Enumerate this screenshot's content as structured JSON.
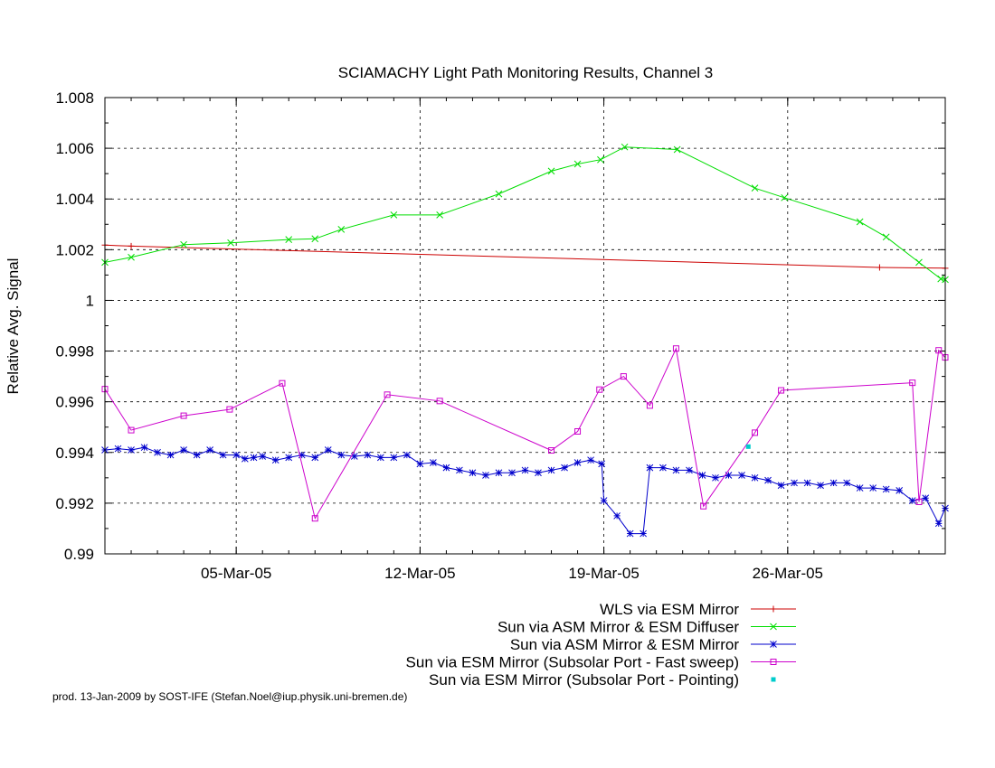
{
  "footer_text": "prod. 13-Jan-2009 by SOST-IFE (Stefan.Noel@iup.physik.uni-bremen.de)",
  "chart_data": {
    "type": "line",
    "title": "SCIAMACHY Light Path Monitoring Results, Channel 3",
    "xlabel": "",
    "ylabel": "Relative Avg. Signal",
    "xlim": [
      "2005-02-28 00:00",
      "2005-04-01 00:00"
    ],
    "ylim": [
      0.99,
      1.008
    ],
    "yticks": [
      0.99,
      0.992,
      0.994,
      0.996,
      0.998,
      1,
      1.002,
      1.004,
      1.006,
      1.008
    ],
    "ytick_labels": [
      "0.99",
      "0.992",
      "0.994",
      "0.996",
      "0.998",
      "1",
      "1.002",
      "1.004",
      "1.006",
      "1.008"
    ],
    "xticks": [
      "2005-03-05",
      "2005-03-12",
      "2005-03-19",
      "2005-03-26"
    ],
    "xtick_labels": [
      "05-Mar-05",
      "12-Mar-05",
      "19-Mar-05",
      "26-Mar-05"
    ],
    "grid": true,
    "legend_position": "bottom-right, below plot",
    "series": [
      {
        "name": "WLS via ESM Mirror",
        "color": "#cc0000",
        "marker": "plus",
        "style": "line",
        "points": [
          [
            "2005-02-28 00:00",
            1.00218
          ],
          [
            "2005-03-01 00:00",
            1.00214
          ],
          [
            "2005-03-29 12:00",
            1.0013
          ],
          [
            "2005-04-01 00:00",
            1.00127
          ]
        ]
      },
      {
        "name": "Sun via ASM Mirror & ESM Diffuser",
        "color": "#00dd00",
        "marker": "cross",
        "style": "line",
        "points": [
          [
            "2005-02-28 00:00",
            1.0015
          ],
          [
            "2005-03-01 00:00",
            1.0017
          ],
          [
            "2005-03-03 00:00",
            1.0022
          ],
          [
            "2005-03-04 19:00",
            1.00227
          ],
          [
            "2005-03-07 00:00",
            1.0024
          ],
          [
            "2005-03-08 00:00",
            1.00243
          ],
          [
            "2005-03-09 00:00",
            1.0028
          ],
          [
            "2005-03-11 00:00",
            1.00337
          ],
          [
            "2005-03-12 18:00",
            1.00337
          ],
          [
            "2005-03-15 00:00",
            1.0042
          ],
          [
            "2005-03-17 00:00",
            1.0051
          ],
          [
            "2005-03-18 00:00",
            1.00538
          ],
          [
            "2005-03-18 21:00",
            1.00555
          ],
          [
            "2005-03-19 19:00",
            1.00605
          ],
          [
            "2005-03-21 19:00",
            1.00595
          ],
          [
            "2005-03-24 18:00",
            1.00443
          ],
          [
            "2005-03-25 21:00",
            1.00405
          ],
          [
            "2005-03-28 18:00",
            1.0031
          ],
          [
            "2005-03-29 18:00",
            1.0025
          ],
          [
            "2005-03-31 00:00",
            1.0015
          ],
          [
            "2005-03-31 20:00",
            1.00085
          ],
          [
            "2005-04-01 00:00",
            1.00082
          ]
        ]
      },
      {
        "name": "Sun via ASM Mirror & ESM Mirror",
        "color": "#0000cc",
        "marker": "star",
        "style": "line",
        "points": [
          [
            "2005-02-28 00:00",
            0.9941
          ],
          [
            "2005-02-28 12:00",
            0.99415
          ],
          [
            "2005-03-01 00:00",
            0.9941
          ],
          [
            "2005-03-01 12:00",
            0.9942
          ],
          [
            "2005-03-02 00:00",
            0.994
          ],
          [
            "2005-03-02 12:00",
            0.9939
          ],
          [
            "2005-03-03 00:00",
            0.9941
          ],
          [
            "2005-03-03 12:00",
            0.9939
          ],
          [
            "2005-03-04 00:00",
            0.9941
          ],
          [
            "2005-03-04 12:00",
            0.9939
          ],
          [
            "2005-03-05 00:00",
            0.9939
          ],
          [
            "2005-03-05 08:00",
            0.99375
          ],
          [
            "2005-03-05 16:00",
            0.9938
          ],
          [
            "2005-03-06 00:00",
            0.99385
          ],
          [
            "2005-03-06 12:00",
            0.9937
          ],
          [
            "2005-03-07 00:00",
            0.9938
          ],
          [
            "2005-03-07 12:00",
            0.9939
          ],
          [
            "2005-03-08 00:00",
            0.9938
          ],
          [
            "2005-03-08 12:00",
            0.9941
          ],
          [
            "2005-03-09 00:00",
            0.9939
          ],
          [
            "2005-03-09 12:00",
            0.99385
          ],
          [
            "2005-03-10 00:00",
            0.9939
          ],
          [
            "2005-03-10 12:00",
            0.9938
          ],
          [
            "2005-03-11 00:00",
            0.9938
          ],
          [
            "2005-03-11 12:00",
            0.9939
          ],
          [
            "2005-03-12 00:00",
            0.99355
          ],
          [
            "2005-03-12 12:00",
            0.9936
          ],
          [
            "2005-03-13 00:00",
            0.9934
          ],
          [
            "2005-03-13 12:00",
            0.9933
          ],
          [
            "2005-03-14 00:00",
            0.9932
          ],
          [
            "2005-03-14 12:00",
            0.9931
          ],
          [
            "2005-03-15 00:00",
            0.9932
          ],
          [
            "2005-03-15 12:00",
            0.9932
          ],
          [
            "2005-03-16 00:00",
            0.9933
          ],
          [
            "2005-03-16 12:00",
            0.9932
          ],
          [
            "2005-03-17 00:00",
            0.9933
          ],
          [
            "2005-03-17 12:00",
            0.9934
          ],
          [
            "2005-03-18 00:00",
            0.9936
          ],
          [
            "2005-03-18 12:00",
            0.9937
          ],
          [
            "2005-03-18 22:00",
            0.99355
          ],
          [
            "2005-03-19 00:00",
            0.9921
          ],
          [
            "2005-03-19 12:00",
            0.9915
          ],
          [
            "2005-03-20 00:00",
            0.9908
          ],
          [
            "2005-03-20 12:00",
            0.9908
          ],
          [
            "2005-03-20 18:00",
            0.9934
          ],
          [
            "2005-03-21 06:00",
            0.9934
          ],
          [
            "2005-03-21 18:00",
            0.9933
          ],
          [
            "2005-03-22 06:00",
            0.9933
          ],
          [
            "2005-03-22 18:00",
            0.9931
          ],
          [
            "2005-03-23 06:00",
            0.993
          ],
          [
            "2005-03-23 18:00",
            0.9931
          ],
          [
            "2005-03-24 06:00",
            0.9931
          ],
          [
            "2005-03-24 18:00",
            0.993
          ],
          [
            "2005-03-25 06:00",
            0.9929
          ],
          [
            "2005-03-25 18:00",
            0.9927
          ],
          [
            "2005-03-26 06:00",
            0.9928
          ],
          [
            "2005-03-26 18:00",
            0.9928
          ],
          [
            "2005-03-27 06:00",
            0.9927
          ],
          [
            "2005-03-27 18:00",
            0.9928
          ],
          [
            "2005-03-28 06:00",
            0.9928
          ],
          [
            "2005-03-28 18:00",
            0.9926
          ],
          [
            "2005-03-29 06:00",
            0.9926
          ],
          [
            "2005-03-29 18:00",
            0.99255
          ],
          [
            "2005-03-30 06:00",
            0.9925
          ],
          [
            "2005-03-30 18:00",
            0.9921
          ],
          [
            "2005-03-31 06:00",
            0.9922
          ],
          [
            "2005-03-31 18:00",
            0.9912
          ],
          [
            "2005-04-01 00:00",
            0.9918
          ]
        ]
      },
      {
        "name": "Sun via ESM Mirror (Subsolar Port - Fast sweep)",
        "color": "#cc00cc",
        "marker": "square",
        "style": "line",
        "points": [
          [
            "2005-02-28 00:00",
            0.9965
          ],
          [
            "2005-03-01 00:00",
            0.99488
          ],
          [
            "2005-03-03 00:00",
            0.99545
          ],
          [
            "2005-03-04 18:00",
            0.9957
          ],
          [
            "2005-03-06 18:00",
            0.99673
          ],
          [
            "2005-03-08 00:00",
            0.9914
          ],
          [
            "2005-03-10 18:00",
            0.99628
          ],
          [
            "2005-03-12 18:00",
            0.99603
          ],
          [
            "2005-03-17 00:00",
            0.99408
          ],
          [
            "2005-03-18 00:00",
            0.99483
          ],
          [
            "2005-03-18 20:00",
            0.99648
          ],
          [
            "2005-03-19 18:00",
            0.997
          ],
          [
            "2005-03-20 18:00",
            0.99585
          ],
          [
            "2005-03-21 18:00",
            0.9981
          ],
          [
            "2005-03-22 19:00",
            0.99188
          ],
          [
            "2005-03-24 18:00",
            0.99478
          ],
          [
            "2005-03-25 18:00",
            0.99645
          ],
          [
            "2005-03-30 18:00",
            0.99675
          ],
          [
            "2005-03-31 00:00",
            0.99205
          ],
          [
            "2005-03-31 18:00",
            0.99803
          ],
          [
            "2005-04-01 00:00",
            0.99775
          ]
        ]
      },
      {
        "name": "Sun via ESM Mirror (Subsolar Port - Pointing)",
        "color": "#00cccc",
        "marker": "dot",
        "style": "points",
        "points": [
          [
            "2005-03-24 12:00",
            0.99423
          ]
        ]
      }
    ]
  }
}
